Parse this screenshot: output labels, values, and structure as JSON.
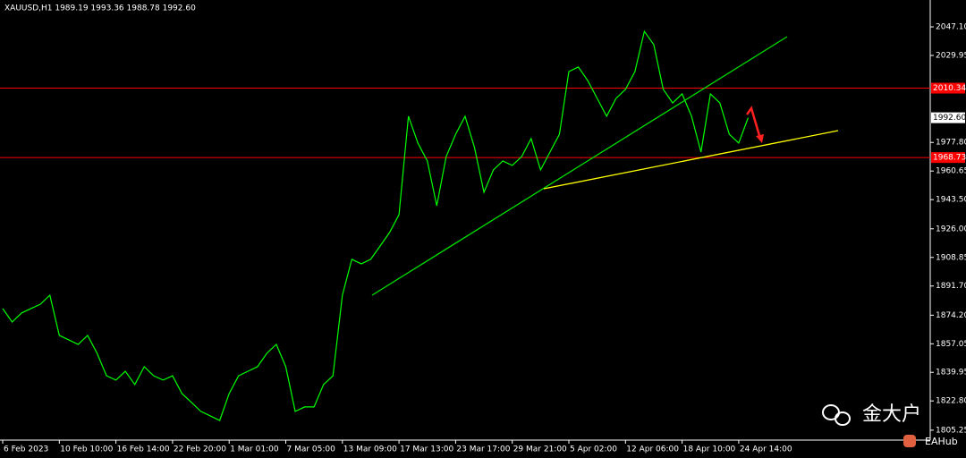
{
  "chart_data": {
    "type": "line",
    "title": "XAUUSD,H1  1989.19 1993.36 1988.78 1992.60",
    "categories": [
      "6 Feb 2023",
      null,
      null,
      null,
      null,
      null,
      "10 Feb 10:00",
      null,
      null,
      null,
      null,
      null,
      "16 Feb 14:00",
      null,
      null,
      null,
      null,
      null,
      "22 Feb 20:00",
      null,
      null,
      null,
      null,
      null,
      "1 Mar 01:00",
      null,
      null,
      null,
      null,
      null,
      "7 Mar 05:00",
      null,
      null,
      null,
      null,
      null,
      "13 Mar 09:00",
      null,
      null,
      null,
      null,
      null,
      "17 Mar 13:00",
      null,
      null,
      null,
      null,
      null,
      "23 Mar 17:00",
      null,
      null,
      null,
      null,
      null,
      "29 Mar 21:00",
      null,
      null,
      null,
      null,
      null,
      "5 Apr 02:00",
      null,
      null,
      null,
      null,
      null,
      "12 Apr 06:00",
      null,
      null,
      null,
      null,
      null,
      "18 Apr 10:00",
      null,
      null,
      null,
      null,
      null,
      "24 Apr 14:00",
      null
    ],
    "series": [
      {
        "name": "XAUUSD",
        "color": "#00ff00",
        "values": [
          1878.2,
          1870.1,
          1875.5,
          1878.2,
          1880.8,
          1886.2,
          1862.1,
          1859.4,
          1856.7,
          1862.1,
          1851.4,
          1837.9,
          1835.3,
          1840.6,
          1832.6,
          1843.3,
          1837.9,
          1835.3,
          1837.9,
          1827.2,
          1821.9,
          1816.5,
          1813.8,
          1811.1,
          1827.2,
          1837.9,
          1840.6,
          1843.3,
          1851.4,
          1856.7,
          1843.3,
          1816.5,
          1819.2,
          1819.2,
          1832.6,
          1837.9,
          1886.2,
          1907.7,
          1905.0,
          1907.7,
          1915.7,
          1923.8,
          1934.5,
          1993.5,
          1977.4,
          1966.7,
          1939.8,
          1969.3,
          1982.7,
          1993.5,
          1974.7,
          1947.9,
          1961.3,
          1966.7,
          1964.0,
          1969.3,
          1980.1,
          1961.3,
          1972.0,
          1982.7,
          2020.3,
          2023.0,
          2014.9,
          2004.2,
          1993.5,
          2004.2,
          2009.6,
          2020.3,
          2044.4,
          2036.4,
          2009.6,
          2001.5,
          2006.9,
          1993.5,
          1972.0,
          2006.9,
          2001.5,
          1982.7,
          1977.4,
          1992.6
        ]
      }
    ],
    "ylim": [
      1799.3,
      2063.2
    ],
    "yticks": [
      {
        "value": 2047.1,
        "label": "2047.10"
      },
      {
        "value": 2029.95,
        "label": "2029.95"
      },
      {
        "value": 1977.8,
        "label": "1977.80"
      },
      {
        "value": 1960.65,
        "label": "1960.65"
      },
      {
        "value": 1943.5,
        "label": "1943.50"
      },
      {
        "value": 1926.0,
        "label": "1926.00"
      },
      {
        "value": 1908.85,
        "label": "1908.85"
      },
      {
        "value": 1891.7,
        "label": "1891.70"
      },
      {
        "value": 1874.2,
        "label": "1874.20"
      },
      {
        "value": 1857.05,
        "label": "1857.05"
      },
      {
        "value": 1839.95,
        "label": "1839.95"
      },
      {
        "value": 1822.8,
        "label": "1822.80"
      },
      {
        "value": 1805.25,
        "label": "1805.25"
      }
    ],
    "price_lines": [
      {
        "value": 2010.34,
        "color": "#ff0000"
      },
      {
        "value": 1968.73,
        "color": "#ff0000"
      }
    ],
    "current_price": {
      "value": 1992.6,
      "label": "1992.60"
    },
    "grid": false
  },
  "watermark": "金大户",
  "badge": "EAHub"
}
